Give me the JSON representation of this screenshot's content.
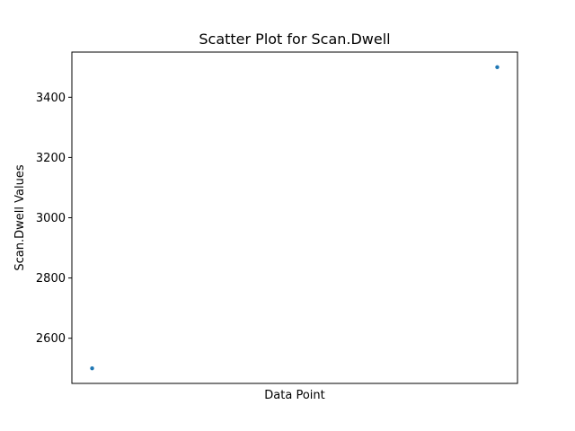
{
  "chart_data": {
    "type": "scatter",
    "title": "Scatter Plot for Scan.Dwell",
    "xlabel": "Data Point",
    "ylabel": "Scan.Dwell Values",
    "x": [
      0,
      1
    ],
    "y": [
      2500,
      3500
    ],
    "xlim": [
      -0.05,
      1.05
    ],
    "ylim": [
      2450,
      3550
    ],
    "yticks": [
      2600,
      2800,
      3000,
      3200,
      3400
    ],
    "xticks": [],
    "grid": false,
    "marker_color": "#1f77b4"
  }
}
